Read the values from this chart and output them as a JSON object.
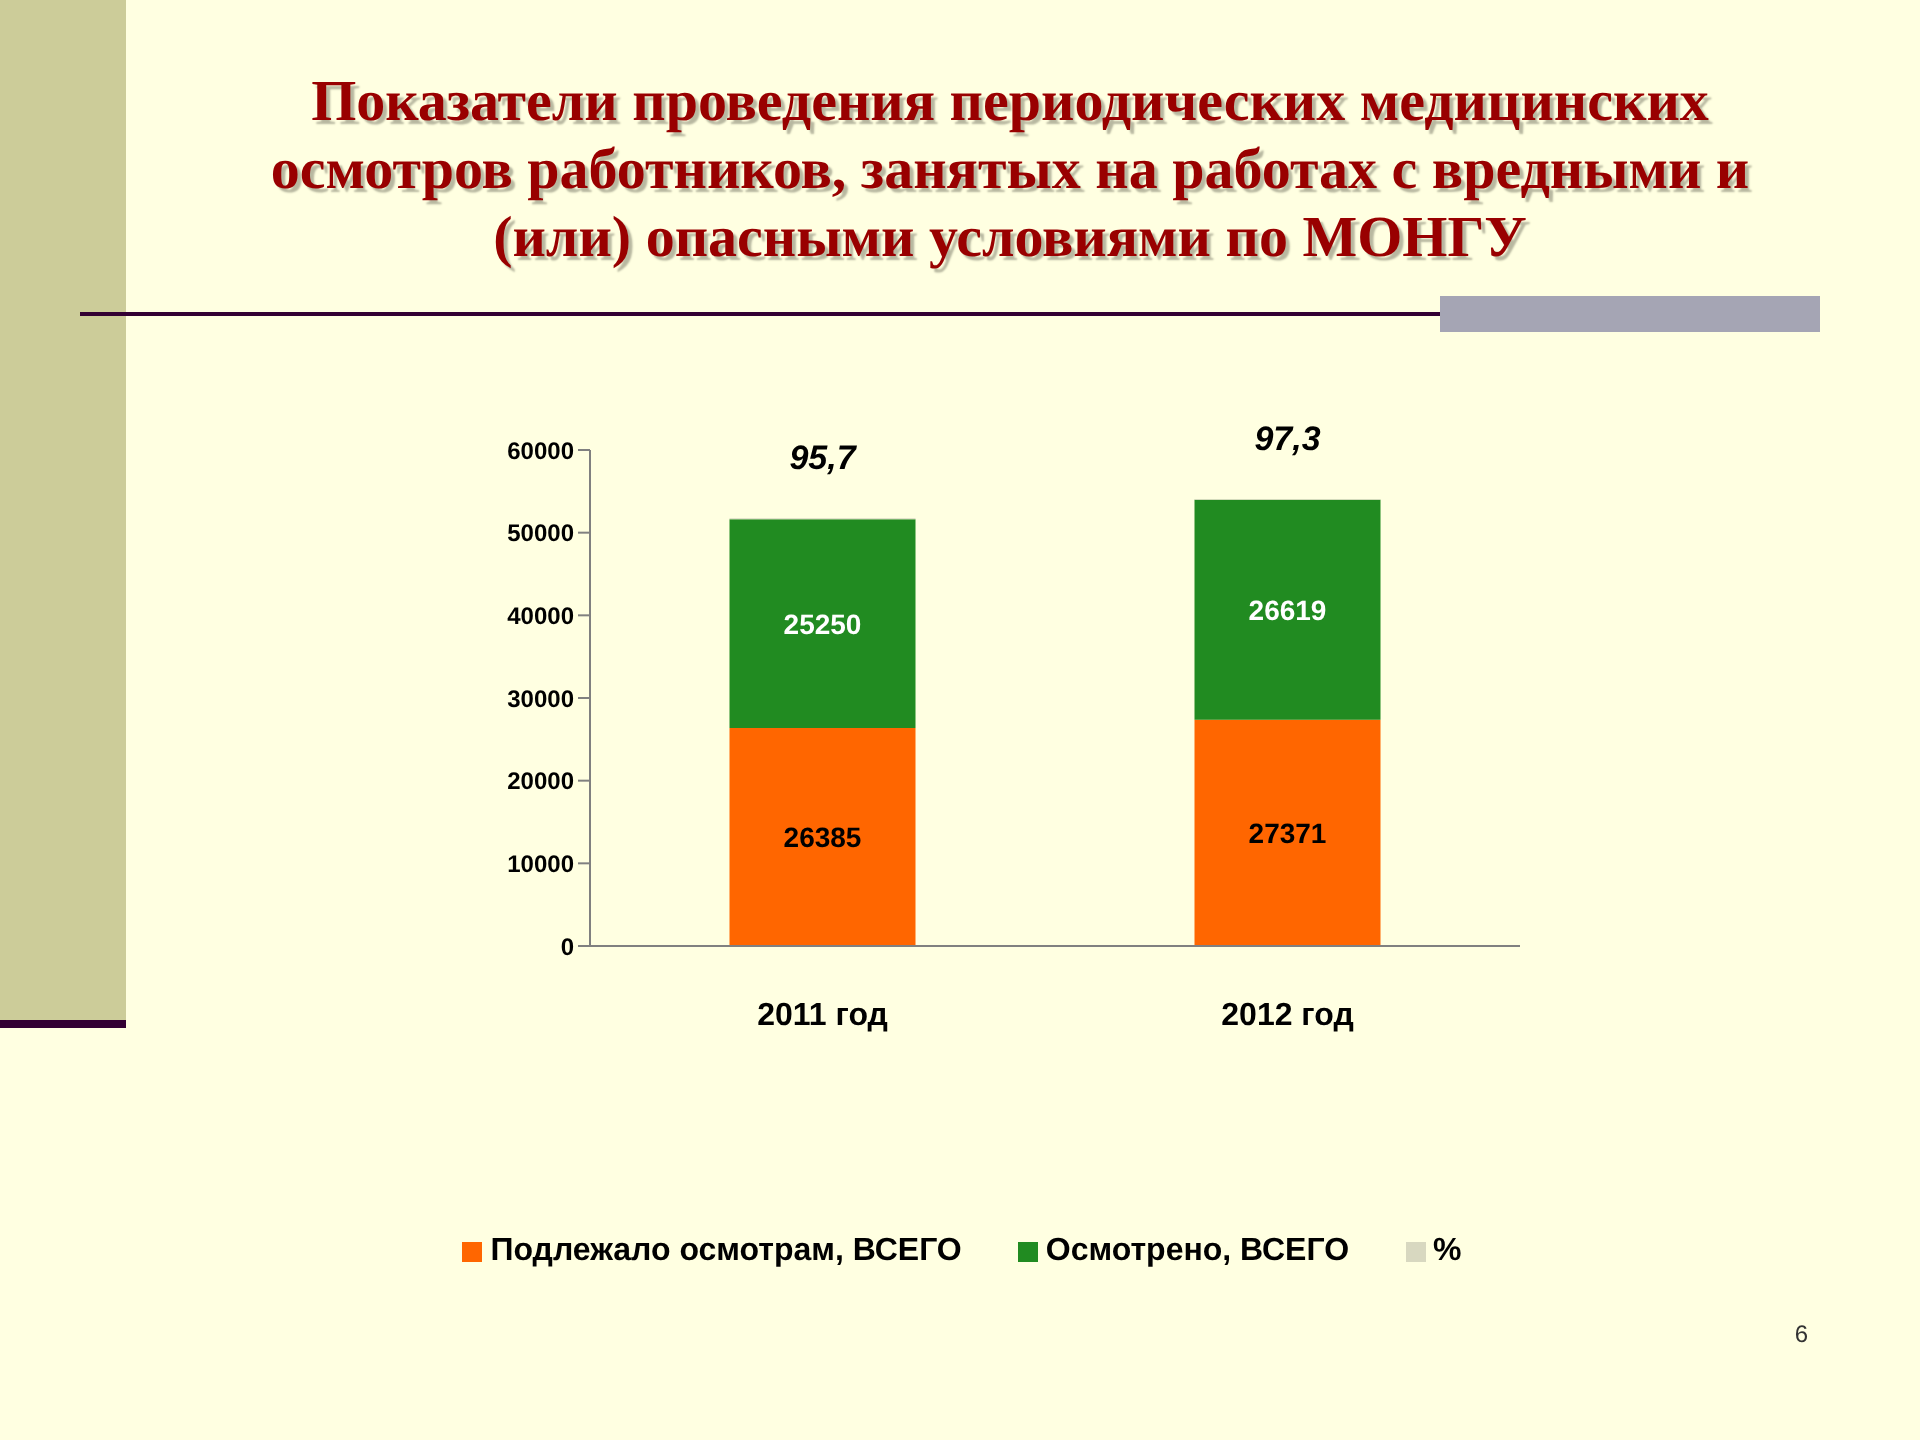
{
  "chart_data": {
    "type": "bar",
    "title": "Показатели проведения периодических медицинских осмотров работников, занятых на работах с вредными и (или) опасными условиями по МОНГУ",
    "categories": [
      "2011 год",
      "2012 год"
    ],
    "series": [
      {
        "name": "Подлежало осмотрам, ВСЕГО",
        "color": "#ff6600",
        "values": [
          26385,
          27371
        ],
        "value_labels": [
          "26385",
          "27371"
        ]
      },
      {
        "name": "Осмотрено, ВСЕГО",
        "color": "#218b21",
        "values": [
          25250,
          26619
        ],
        "value_labels": [
          "25250",
          "26619"
        ]
      },
      {
        "name": "%",
        "color": "#d8d8c0",
        "values": [
          95.7,
          97.3
        ],
        "value_labels": [
          "95,7",
          "97,3"
        ]
      }
    ],
    "stacked": true,
    "ylim": [
      0,
      60000
    ],
    "yticks": [
      0,
      10000,
      20000,
      30000,
      40000,
      50000,
      60000
    ],
    "legend": "bottom",
    "annotations": [
      "6"
    ]
  }
}
